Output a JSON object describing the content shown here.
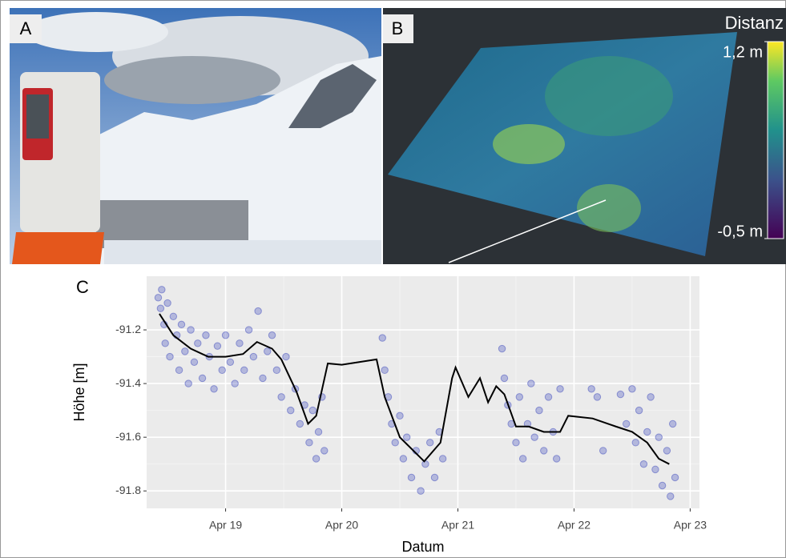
{
  "panels": [
    {
      "label": "A"
    },
    {
      "label": "B"
    }
  ],
  "colorbar": {
    "title": "Distanz",
    "lim": [
      -0.5,
      1.2
    ],
    "ticks": [
      {
        "value": 1.2,
        "label": "1,2 m"
      },
      {
        "value": -0.5,
        "label": "-0,5 m"
      }
    ]
  },
  "chart_data": {
    "type": "scatter",
    "panel_label": "C",
    "x_label": "Datum",
    "y_label": "Höhe [m]",
    "xlim": [
      18.32,
      23.08
    ],
    "ylim": [
      -91.865,
      -91.0
    ],
    "xticks": [
      {
        "value": 19,
        "label": "Apr 19"
      },
      {
        "value": 20,
        "label": "Apr 20"
      },
      {
        "value": 21,
        "label": "Apr 21"
      },
      {
        "value": 22,
        "label": "Apr 22"
      },
      {
        "value": 23,
        "label": "Apr 23"
      }
    ],
    "yticks": [
      {
        "value": -91.2,
        "label": "-91.2"
      },
      {
        "value": -91.4,
        "label": "-91.4"
      },
      {
        "value": -91.6,
        "label": "-91.6"
      },
      {
        "value": -91.8,
        "label": "-91.8"
      }
    ],
    "grid": true,
    "series": [
      {
        "type": "scatter",
        "color": "#4b55c0",
        "x": [
          18.42,
          18.44,
          18.45,
          18.47,
          18.48,
          18.5,
          18.52,
          18.55,
          18.58,
          18.6,
          18.62,
          18.65,
          18.68,
          18.7,
          18.73,
          18.76,
          18.8,
          18.83,
          18.86,
          18.9,
          18.93,
          18.97,
          19.0,
          19.04,
          19.08,
          19.12,
          19.16,
          19.2,
          19.24,
          19.28,
          19.32,
          19.36,
          19.4,
          19.44,
          19.48,
          19.52,
          19.56,
          19.6,
          19.64,
          19.68,
          19.72,
          19.75,
          19.78,
          19.8,
          19.83,
          19.85,
          20.35,
          20.37,
          20.4,
          20.43,
          20.46,
          20.5,
          20.53,
          20.56,
          20.6,
          20.64,
          20.68,
          20.72,
          20.76,
          20.8,
          20.84,
          20.87,
          21.38,
          21.4,
          21.43,
          21.46,
          21.5,
          21.53,
          21.56,
          21.6,
          21.63,
          21.66,
          21.7,
          21.74,
          21.78,
          21.82,
          21.85,
          21.88,
          22.15,
          22.2,
          22.25,
          22.4,
          22.45,
          22.5,
          22.53,
          22.56,
          22.6,
          22.63,
          22.66,
          22.7,
          22.73,
          22.76,
          22.8,
          22.83,
          22.85,
          22.87
        ],
        "values": [
          -91.08,
          -91.12,
          -91.05,
          -91.18,
          -91.25,
          -91.1,
          -91.3,
          -91.15,
          -91.22,
          -91.35,
          -91.18,
          -91.28,
          -91.4,
          -91.2,
          -91.32,
          -91.25,
          -91.38,
          -91.22,
          -91.3,
          -91.42,
          -91.26,
          -91.35,
          -91.22,
          -91.32,
          -91.4,
          -91.25,
          -91.35,
          -91.2,
          -91.3,
          -91.13,
          -91.38,
          -91.28,
          -91.22,
          -91.35,
          -91.45,
          -91.3,
          -91.5,
          -91.42,
          -91.55,
          -91.48,
          -91.62,
          -91.5,
          -91.68,
          -91.58,
          -91.45,
          -91.65,
          -91.23,
          -91.35,
          -91.45,
          -91.55,
          -91.62,
          -91.52,
          -91.68,
          -91.6,
          -91.75,
          -91.65,
          -91.8,
          -91.7,
          -91.62,
          -91.75,
          -91.58,
          -91.68,
          -91.27,
          -91.38,
          -91.48,
          -91.55,
          -91.62,
          -91.45,
          -91.68,
          -91.55,
          -91.4,
          -91.6,
          -91.5,
          -91.65,
          -91.45,
          -91.58,
          -91.68,
          -91.42,
          -91.42,
          -91.45,
          -91.65,
          -91.44,
          -91.55,
          -91.42,
          -91.62,
          -91.5,
          -91.7,
          -91.58,
          -91.45,
          -91.72,
          -91.6,
          -91.78,
          -91.65,
          -91.82,
          -91.55,
          -91.75
        ]
      },
      {
        "type": "line",
        "color": "#000000",
        "x": [
          18.43,
          18.55,
          18.7,
          18.85,
          19.0,
          19.15,
          19.27,
          19.4,
          19.48,
          19.61,
          19.71,
          19.78,
          19.88,
          20.0,
          20.15,
          20.3,
          20.37,
          20.5,
          20.71,
          20.85,
          20.95,
          20.98,
          21.09,
          21.19,
          21.26,
          21.33,
          21.4,
          21.5,
          21.61,
          21.74,
          21.88,
          21.95,
          22.16,
          22.36,
          22.5,
          22.63,
          22.73,
          22.82
        ],
        "values": [
          -91.14,
          -91.22,
          -91.27,
          -91.3,
          -91.3,
          -91.29,
          -91.245,
          -91.27,
          -91.31,
          -91.43,
          -91.55,
          -91.52,
          -91.325,
          -91.33,
          -91.32,
          -91.31,
          -91.45,
          -91.6,
          -91.69,
          -91.62,
          -91.38,
          -91.34,
          -91.45,
          -91.38,
          -91.47,
          -91.41,
          -91.44,
          -91.56,
          -91.56,
          -91.58,
          -91.58,
          -91.52,
          -91.53,
          -91.56,
          -91.58,
          -91.62,
          -91.68,
          -91.7
        ]
      }
    ]
  }
}
